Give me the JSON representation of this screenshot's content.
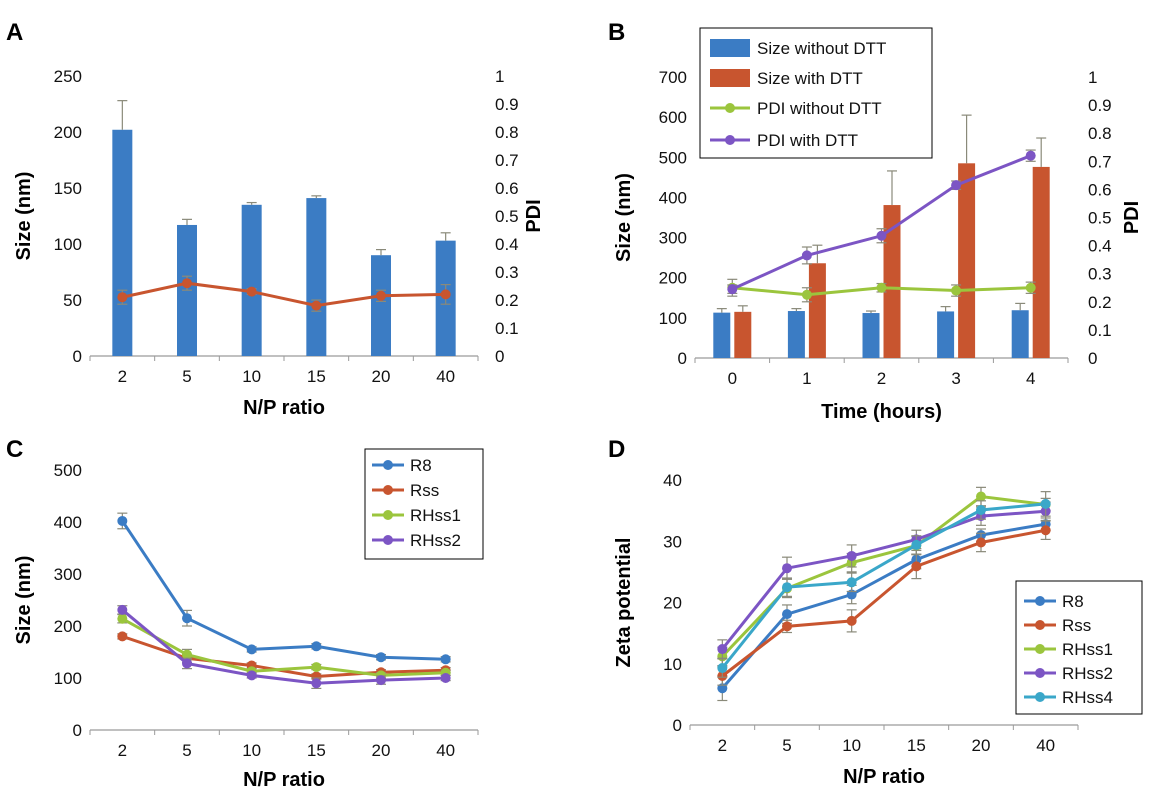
{
  "colors": {
    "blue": "#3b7cc4",
    "orange": "#c8552f",
    "green": "#9bc53d",
    "purple": "#7c55c4",
    "cyan": "#3aa7c9",
    "axis": "#9a9a9a",
    "error": "#8a8a7a"
  },
  "chart_data": [
    {
      "panel": "A",
      "type": "bar",
      "xlabel": "N/P ratio",
      "ylabel": "Size (nm)",
      "y2label": "PDI",
      "categories": [
        "2",
        "5",
        "10",
        "15",
        "20",
        "40"
      ],
      "ylim": [
        0,
        250
      ],
      "yticks": [
        "0",
        "50",
        "100",
        "150",
        "200",
        "250"
      ],
      "y2lim": [
        0,
        1
      ],
      "y2ticks": [
        "0",
        "0.1",
        "0.2",
        "0.3",
        "0.4",
        "0.5",
        "0.6",
        "0.7",
        "0.8",
        "0.9",
        "1"
      ],
      "bars": {
        "values": [
          202,
          117,
          135,
          141,
          90,
          103
        ],
        "errors": [
          26,
          5,
          2,
          2,
          5,
          7
        ]
      },
      "line": {
        "values": [
          0.21,
          0.26,
          0.23,
          0.18,
          0.215,
          0.22
        ],
        "errors": [
          0.025,
          0.025,
          0.01,
          0.02,
          0.02,
          0.035
        ]
      },
      "grid": false
    },
    {
      "panel": "B",
      "type": "bar",
      "xlabel": "Time (hours)",
      "ylabel": "Size (nm)",
      "y2label": "PDI",
      "categories": [
        "0",
        "1",
        "2",
        "3",
        "4"
      ],
      "ylim": [
        0,
        700
      ],
      "yticks": [
        "0",
        "100",
        "200",
        "300",
        "400",
        "500",
        "600",
        "700"
      ],
      "y2lim": [
        0,
        1
      ],
      "y2ticks": [
        "0",
        "0.1",
        "0.2",
        "0.3",
        "0.4",
        "0.5",
        "0.6",
        "0.7",
        "0.8",
        "0.9",
        "1"
      ],
      "bar_series": [
        {
          "name": "Size without DTT",
          "color": "#3b7cc4",
          "values": [
            113,
            117,
            112,
            116,
            119
          ],
          "errors": [
            10,
            6,
            5,
            12,
            17
          ]
        },
        {
          "name": "Size with DTT",
          "color": "#c8552f",
          "values": [
            115,
            236,
            381,
            485,
            476
          ],
          "errors": [
            15,
            45,
            85,
            120,
            72
          ]
        }
      ],
      "line_series": [
        {
          "name": "PDI without DTT",
          "color": "#9bc53d",
          "values": [
            0.25,
            0.225,
            0.25,
            0.24,
            0.25
          ],
          "errors": [
            0.03,
            0.025,
            0.015,
            0.02,
            0.02
          ]
        },
        {
          "name": "PDI with DTT",
          "color": "#7c55c4",
          "values": [
            0.245,
            0.365,
            0.435,
            0.615,
            0.72
          ],
          "errors": [
            0.015,
            0.03,
            0.025,
            0.015,
            0.02
          ]
        }
      ],
      "legend": "top-left",
      "grid": false
    },
    {
      "panel": "C",
      "type": "line",
      "xlabel": "N/P ratio",
      "ylabel": "Size (nm)",
      "categories": [
        "2",
        "5",
        "10",
        "15",
        "20",
        "40"
      ],
      "ylim": [
        0,
        500
      ],
      "yticks": [
        "0",
        "100",
        "200",
        "300",
        "400",
        "500"
      ],
      "series": [
        {
          "name": "R8",
          "color": "#3b7cc4",
          "values": [
            402,
            215,
            155,
            161,
            140,
            136
          ],
          "errors": [
            15,
            15,
            5,
            5,
            5,
            5
          ]
        },
        {
          "name": "Rss",
          "color": "#c8552f",
          "values": [
            180,
            138,
            124,
            103,
            111,
            115
          ],
          "errors": [
            5,
            8,
            5,
            5,
            5,
            5
          ]
        },
        {
          "name": "RHss1",
          "color": "#9bc53d",
          "values": [
            214,
            145,
            113,
            121,
            105,
            110
          ],
          "errors": [
            8,
            10,
            5,
            5,
            5,
            5
          ]
        },
        {
          "name": "RHss2",
          "color": "#7c55c4",
          "values": [
            231,
            128,
            105,
            90,
            96,
            100
          ],
          "errors": [
            8,
            10,
            5,
            10,
            8,
            5
          ]
        }
      ],
      "legend": "top-right",
      "grid": false
    },
    {
      "panel": "D",
      "type": "line",
      "xlabel": "N/P ratio",
      "ylabel": "Zeta potential",
      "categories": [
        "2",
        "5",
        "10",
        "15",
        "20",
        "40"
      ],
      "ylim": [
        0,
        40
      ],
      "yticks": [
        "0",
        "10",
        "20",
        "30",
        "40"
      ],
      "series": [
        {
          "name": "R8",
          "color": "#3b7cc4",
          "values": [
            6.0,
            18.1,
            21.3,
            27.0,
            31.0,
            32.8
          ],
          "errors": [
            2.0,
            1.5,
            1.5,
            1.5,
            1.0,
            1.0
          ]
        },
        {
          "name": "Rss",
          "color": "#c8552f",
          "values": [
            8.0,
            16.1,
            17.0,
            25.9,
            29.8,
            31.8
          ],
          "errors": [
            1.5,
            1.0,
            1.8,
            2.0,
            1.5,
            1.5
          ]
        },
        {
          "name": "RHss1",
          "color": "#9bc53d",
          "values": [
            11.2,
            22.3,
            26.5,
            29.3,
            37.3,
            36.0
          ],
          "errors": [
            1.5,
            1.5,
            1.5,
            1.5,
            1.5,
            1.0
          ]
        },
        {
          "name": "RHss2",
          "color": "#7c55c4",
          "values": [
            12.4,
            25.6,
            27.6,
            30.3,
            34.1,
            34.9
          ],
          "errors": [
            1.5,
            1.8,
            1.8,
            1.5,
            1.5,
            1.5
          ]
        },
        {
          "name": "RHss4",
          "color": "#3aa7c9",
          "values": [
            9.3,
            22.5,
            23.3,
            29.4,
            35.1,
            36.1
          ],
          "errors": [
            1.5,
            1.5,
            1.5,
            1.5,
            1.5,
            2.0
          ]
        }
      ],
      "legend": "right",
      "grid": false
    }
  ]
}
